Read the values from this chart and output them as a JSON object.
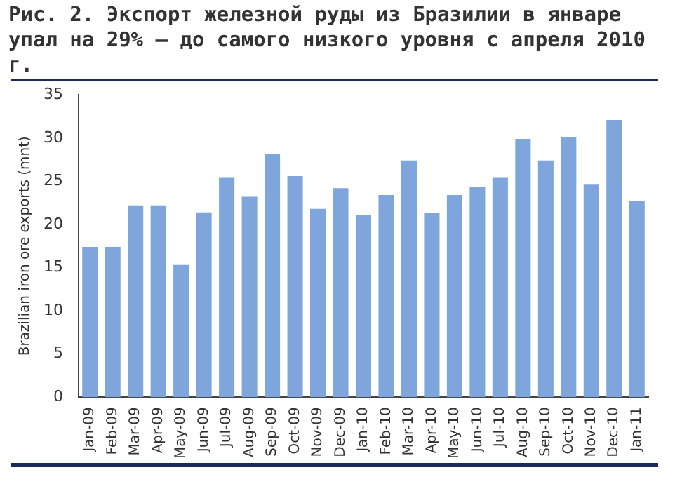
{
  "chart_data": {
    "type": "bar",
    "title": "Рис. 2. Экспорт железной руды из Бразилии в январе упал на 29% – до самого низкого уровня с апреля 2010 г.",
    "ylabel": "Brazilian iron ore exports (mnt)",
    "categories": [
      "Jan-09",
      "Feb-09",
      "Mar-09",
      "Apr-09",
      "May-09",
      "Jun-09",
      "Jul-09",
      "Aug-09",
      "Sep-09",
      "Oct-09",
      "Nov-09",
      "Dec-09",
      "Jan-10",
      "Feb-10",
      "Mar-10",
      "Apr-10",
      "May-10",
      "Jun-10",
      "Jul-10",
      "Aug-10",
      "Sep-10",
      "Oct-10",
      "Nov-10",
      "Dec-10",
      "Jan-11"
    ],
    "values": [
      17.4,
      17.4,
      22.2,
      22.2,
      15.3,
      21.4,
      25.4,
      23.2,
      28.2,
      25.6,
      21.8,
      24.2,
      21.1,
      23.4,
      27.4,
      21.3,
      23.4,
      24.3,
      25.4,
      29.9,
      27.4,
      30.1,
      24.6,
      32.1,
      22.7
    ],
    "color": "#7ea6dc",
    "ylim": [
      0,
      35
    ],
    "yticks": [
      0,
      5,
      10,
      15,
      20,
      25,
      30,
      35
    ],
    "grid": false,
    "legend": false
  }
}
